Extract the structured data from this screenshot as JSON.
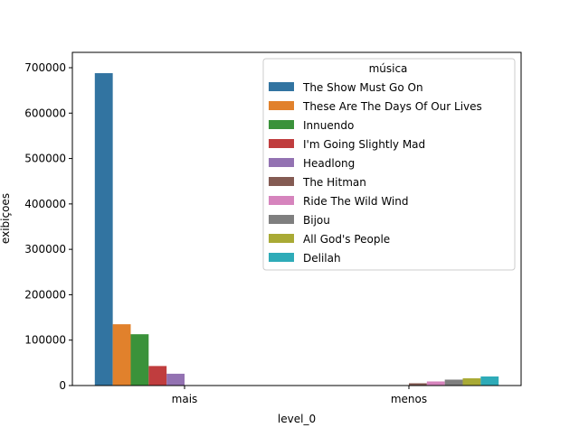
{
  "chart_data": {
    "type": "bar",
    "xlabel": "level_0",
    "ylabel": "exibiçoes",
    "categories": [
      "mais",
      "menos"
    ],
    "ylim": [
      0,
      700000
    ],
    "yticks": [
      0,
      100000,
      200000,
      300000,
      400000,
      500000,
      600000,
      700000
    ],
    "grid": false,
    "legend": {
      "title": "música",
      "placement": "top-right"
    },
    "series": [
      {
        "name": "The Show Must Go On",
        "color": "#3274a1",
        "values": [
          688000,
          0
        ]
      },
      {
        "name": "These Are The Days Of Our Lives",
        "color": "#e1812c",
        "values": [
          135000,
          0
        ]
      },
      {
        "name": "Innuendo",
        "color": "#3a923a",
        "values": [
          113000,
          0
        ]
      },
      {
        "name": "I'm Going Slightly Mad",
        "color": "#c03d3e",
        "values": [
          43000,
          0
        ]
      },
      {
        "name": "Headlong",
        "color": "#9372b2",
        "values": [
          26000,
          0
        ]
      },
      {
        "name": "The Hitman",
        "color": "#845b53",
        "values": [
          0,
          5000
        ]
      },
      {
        "name": "Ride The Wild Wind",
        "color": "#d684bd",
        "values": [
          0,
          9000
        ]
      },
      {
        "name": "Bijou",
        "color": "#7f7f7f",
        "values": [
          0,
          13000
        ]
      },
      {
        "name": "All God's People",
        "color": "#a9aa35",
        "values": [
          0,
          16000
        ]
      },
      {
        "name": "Delilah",
        "color": "#2eabb8",
        "values": [
          0,
          20000
        ]
      }
    ]
  }
}
